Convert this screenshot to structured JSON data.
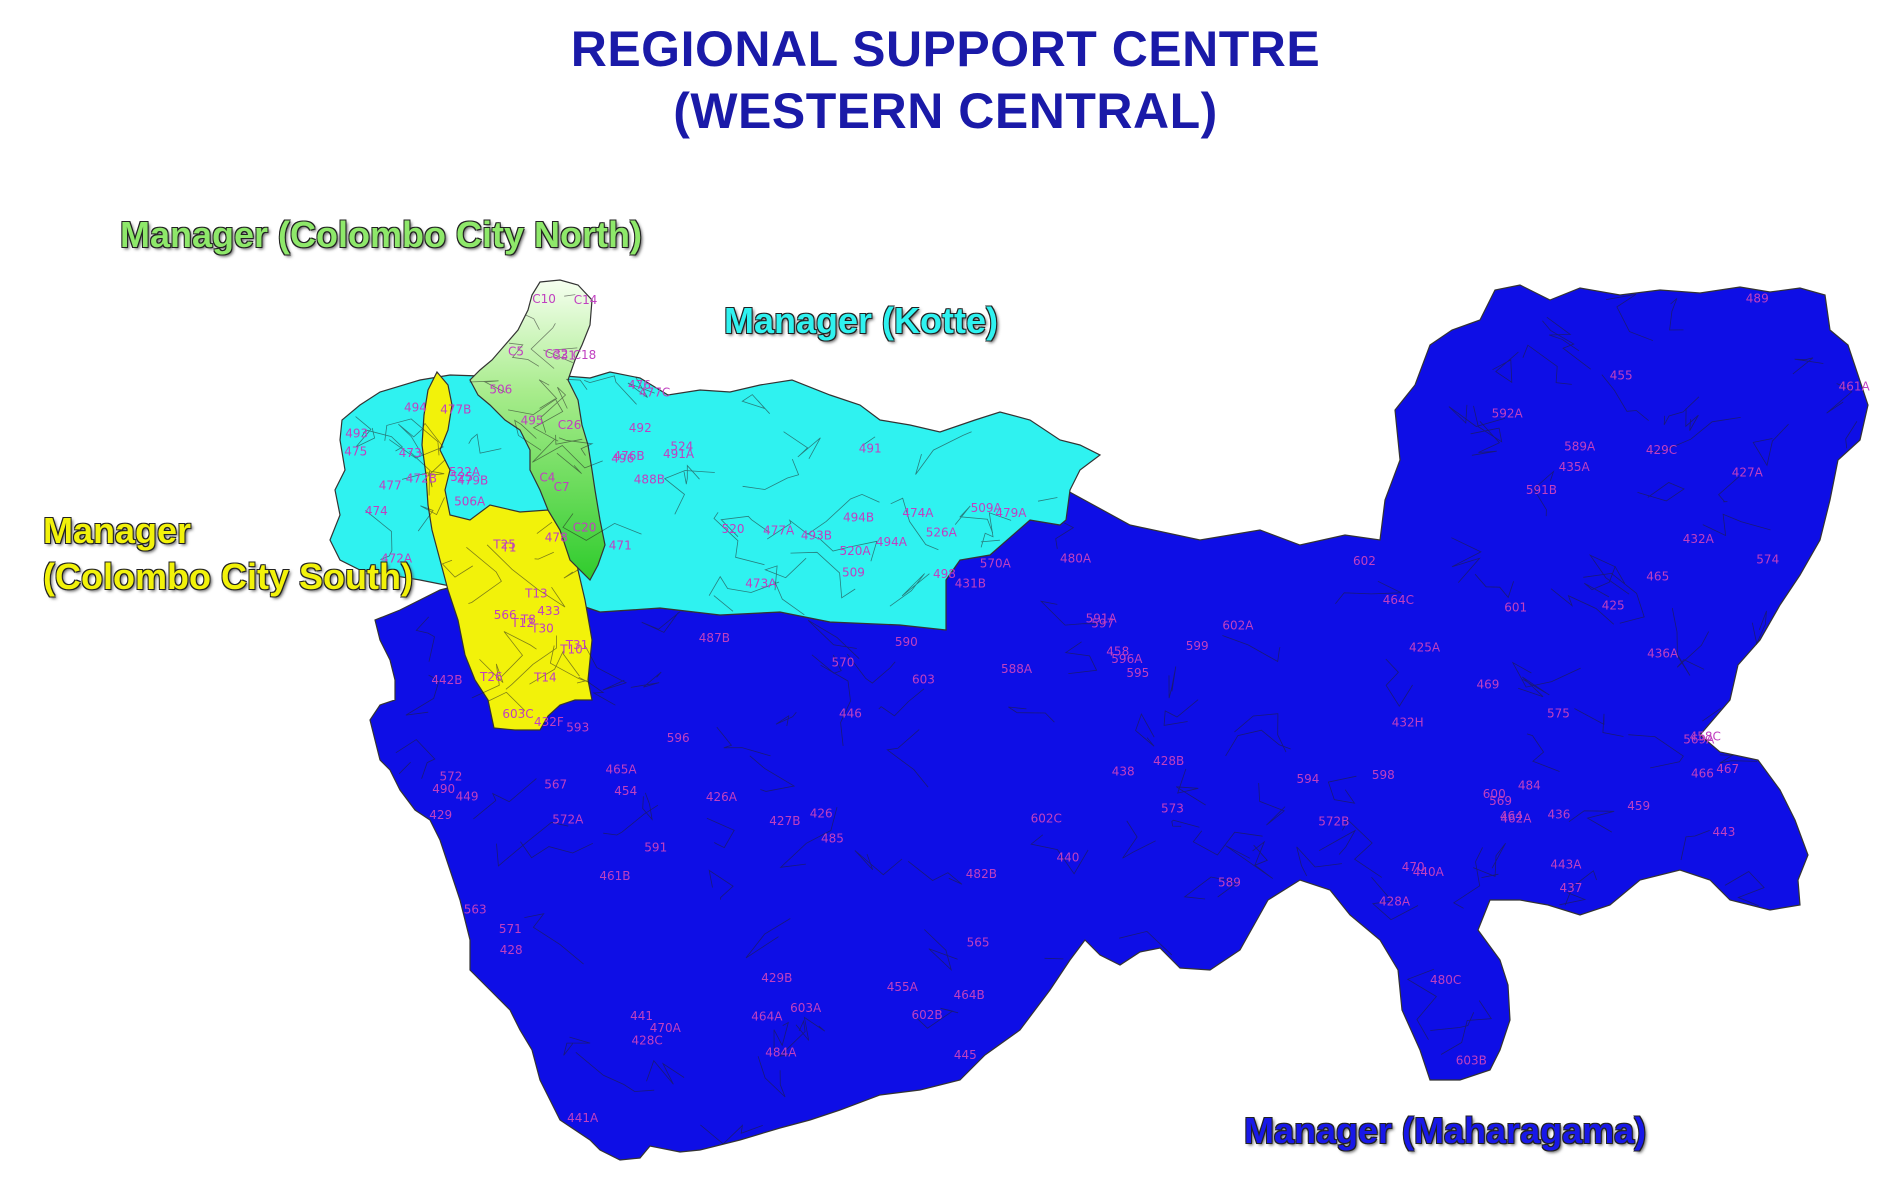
{
  "title": {
    "line1": "REGIONAL SUPPORT CENTRE",
    "line2": "(WESTERN CENTRAL)",
    "color": "#1a1aa8"
  },
  "managers": {
    "north": {
      "label": "Manager (Colombo City North)",
      "color": "#8ee86a"
    },
    "kotte": {
      "label": "Manager (Kotte)",
      "color": "#2ff2f0"
    },
    "south": {
      "label_line1": "Manager",
      "label_line2": "(Colombo City South)",
      "color": "#f2f20a"
    },
    "maharagama": {
      "label": "Manager (Maharagama)",
      "color": "#1818e8"
    }
  },
  "code_color": "#c040c0",
  "codes": {
    "north": [
      "C32",
      "C26",
      "C31",
      "C18",
      "C4",
      "C5",
      "C7",
      "C10",
      "C14",
      "C20"
    ],
    "south": [
      "T1",
      "T12",
      "T13",
      "T14",
      "T25",
      "T26",
      "T30",
      "T31",
      "T10",
      "T8"
    ],
    "kotte": [
      "475",
      "474A",
      "474",
      "473A",
      "472A",
      "471",
      "472B",
      "473",
      "476B",
      "476",
      "488B",
      "498",
      "477",
      "477A",
      "477B",
      "477C",
      "478",
      "479A",
      "479B",
      "491",
      "491A",
      "492",
      "493",
      "493B",
      "494",
      "494A",
      "494B",
      "495",
      "496",
      "506",
      "506A",
      "520",
      "520A",
      "522A",
      "524",
      "525",
      "526A",
      "509",
      "509A"
    ],
    "maharagama": [
      "425A",
      "425",
      "429",
      "429B",
      "432A",
      "432H",
      "431B",
      "432F",
      "433",
      "426",
      "428",
      "426A",
      "427A",
      "427B",
      "428B",
      "428C",
      "429C",
      "428A",
      "436",
      "435A",
      "436A",
      "437",
      "438",
      "440",
      "440A",
      "441",
      "441A",
      "442B",
      "443",
      "443A",
      "446",
      "449",
      "469",
      "470",
      "470A",
      "480C",
      "480A",
      "482B",
      "487B",
      "458",
      "458C",
      "459",
      "461A",
      "461B",
      "462A",
      "464",
      "464A",
      "464B",
      "464C",
      "465",
      "465A",
      "466",
      "467",
      "455",
      "455A",
      "454",
      "445",
      "484",
      "484A",
      "485",
      "489",
      "490",
      "590",
      "591",
      "591A",
      "591B",
      "592A",
      "593",
      "594",
      "595",
      "597",
      "598",
      "599",
      "600",
      "601",
      "602",
      "602A",
      "602B",
      "602C",
      "603",
      "603A",
      "603B",
      "603C",
      "563",
      "565",
      "566",
      "567",
      "569",
      "569A",
      "570",
      "570A",
      "571",
      "572",
      "572A",
      "572B",
      "573",
      "574",
      "575",
      "588A",
      "589",
      "589A",
      "596",
      "596A"
    ]
  }
}
